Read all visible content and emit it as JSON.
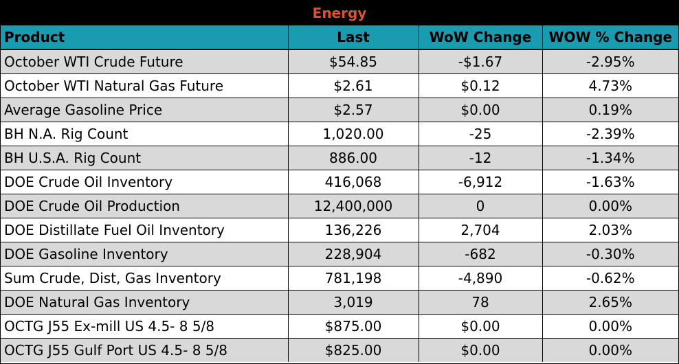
{
  "title": "Energy",
  "columns": [
    "Product",
    "Last",
    "WoW Change",
    "WOW % Change"
  ],
  "rows": [
    [
      "October WTI Crude Future",
      "$54.85",
      "-$1.67",
      "-2.95%"
    ],
    [
      "October WTI Natural Gas Future",
      "$2.61",
      "$0.12",
      "4.73%"
    ],
    [
      "Average Gasoline Price",
      "$2.57",
      "$0.00",
      "0.19%"
    ],
    [
      "BH N.A. Rig Count",
      "1,020.00",
      "-25",
      "-2.39%"
    ],
    [
      "BH U.S.A. Rig Count",
      "886.00",
      "-12",
      "-1.34%"
    ],
    [
      "DOE Crude Oil Inventory",
      "416,068",
      "-6,912",
      "-1.63%"
    ],
    [
      "DOE Crude Oil Production",
      "12,400,000",
      "0",
      "0.00%"
    ],
    [
      "DOE Distillate Fuel Oil Inventory",
      "136,226",
      "2,704",
      "2.03%"
    ],
    [
      "DOE Gasoline Inventory",
      "228,904",
      "-682",
      "-0.30%"
    ],
    [
      "Sum Crude, Dist, Gas Inventory",
      "781,198",
      "-4,890",
      "-0.62%"
    ],
    [
      "DOE Natural Gas Inventory",
      "3,019",
      "78",
      "2.65%"
    ],
    [
      "OCTG J55 Ex-mill US 4.5- 8 5/8",
      "$875.00",
      "$0.00",
      "0.00%"
    ],
    [
      "OCTG J55 Gulf Port US 4.5- 8 5/8",
      "$825.00",
      "$0.00",
      "0.00%"
    ]
  ],
  "colors": {
    "title_bg": "#000000",
    "title_text": "#e0522b",
    "header_bg": "#1a9bb0",
    "row_alt": "#d9d9d9"
  }
}
